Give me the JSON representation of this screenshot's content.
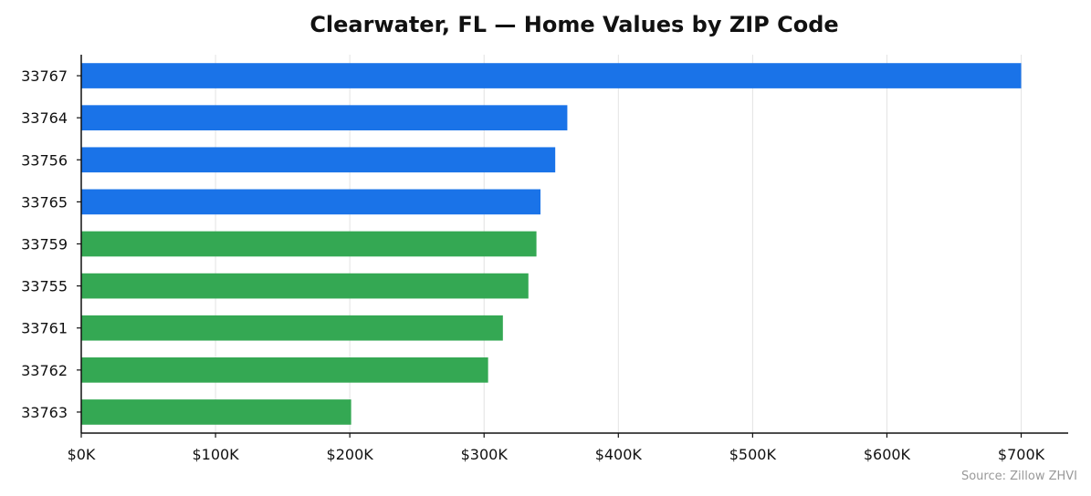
{
  "chart_data": {
    "type": "bar",
    "orientation": "horizontal",
    "title": "Clearwater, FL — Home Values by ZIP Code",
    "xlabel": "",
    "ylabel": "",
    "categories": [
      "33767",
      "33764",
      "33756",
      "33765",
      "33759",
      "33755",
      "33761",
      "33762",
      "33763"
    ],
    "values": [
      700000,
      362000,
      353000,
      342000,
      339000,
      333000,
      314000,
      303000,
      201000
    ],
    "bar_colors": [
      "#1a73e8",
      "#1a73e8",
      "#1a73e8",
      "#1a73e8",
      "#34a853",
      "#34a853",
      "#34a853",
      "#34a853",
      "#34a853"
    ],
    "xlim": [
      0,
      735000
    ],
    "x_ticks": [
      0,
      100000,
      200000,
      300000,
      400000,
      500000,
      600000,
      700000
    ],
    "x_tick_labels": [
      "$0K",
      "$100K",
      "$200K",
      "$300K",
      "$400K",
      "$500K",
      "$600K",
      "$700K"
    ],
    "grid": "vertical",
    "source": "Source: Zillow ZHVI"
  }
}
